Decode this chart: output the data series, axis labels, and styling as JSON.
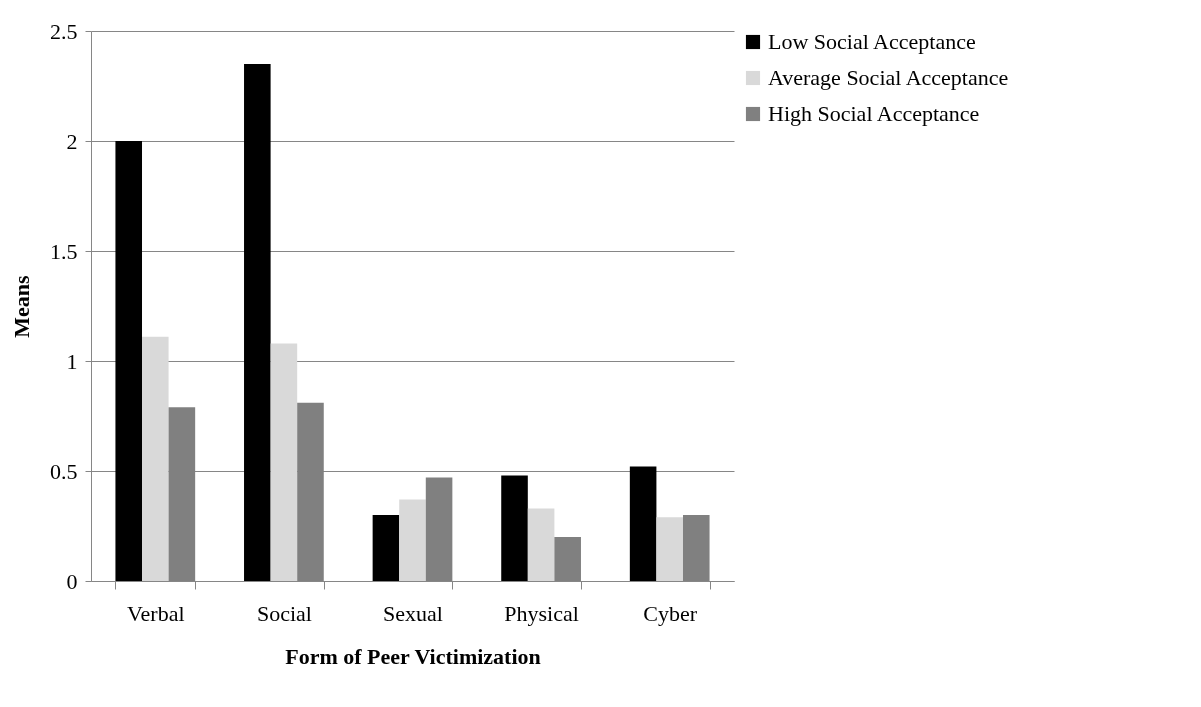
{
  "chart_data": {
    "type": "bar",
    "xlabel": "Form of Peer Victimization",
    "ylabel": "Means",
    "categories": [
      "Verbal",
      "Social",
      "Sexual",
      "Physical",
      "Cyber"
    ],
    "series": [
      {
        "name": "Low Social Acceptance",
        "color": "#000000",
        "values": [
          2.0,
          2.35,
          0.3,
          0.48,
          0.52
        ]
      },
      {
        "name": "Average Social Acceptance",
        "color": "#d9d9d9",
        "values": [
          1.11,
          1.08,
          0.37,
          0.33,
          0.29
        ]
      },
      {
        "name": "High Social Acceptance",
        "color": "#808080",
        "values": [
          0.79,
          0.81,
          0.47,
          0.2,
          0.3
        ]
      }
    ],
    "ylim": [
      0,
      2.5
    ],
    "yticks": [
      0,
      0.5,
      1,
      1.5,
      2,
      2.5
    ],
    "grid": "y",
    "legend": "right"
  }
}
